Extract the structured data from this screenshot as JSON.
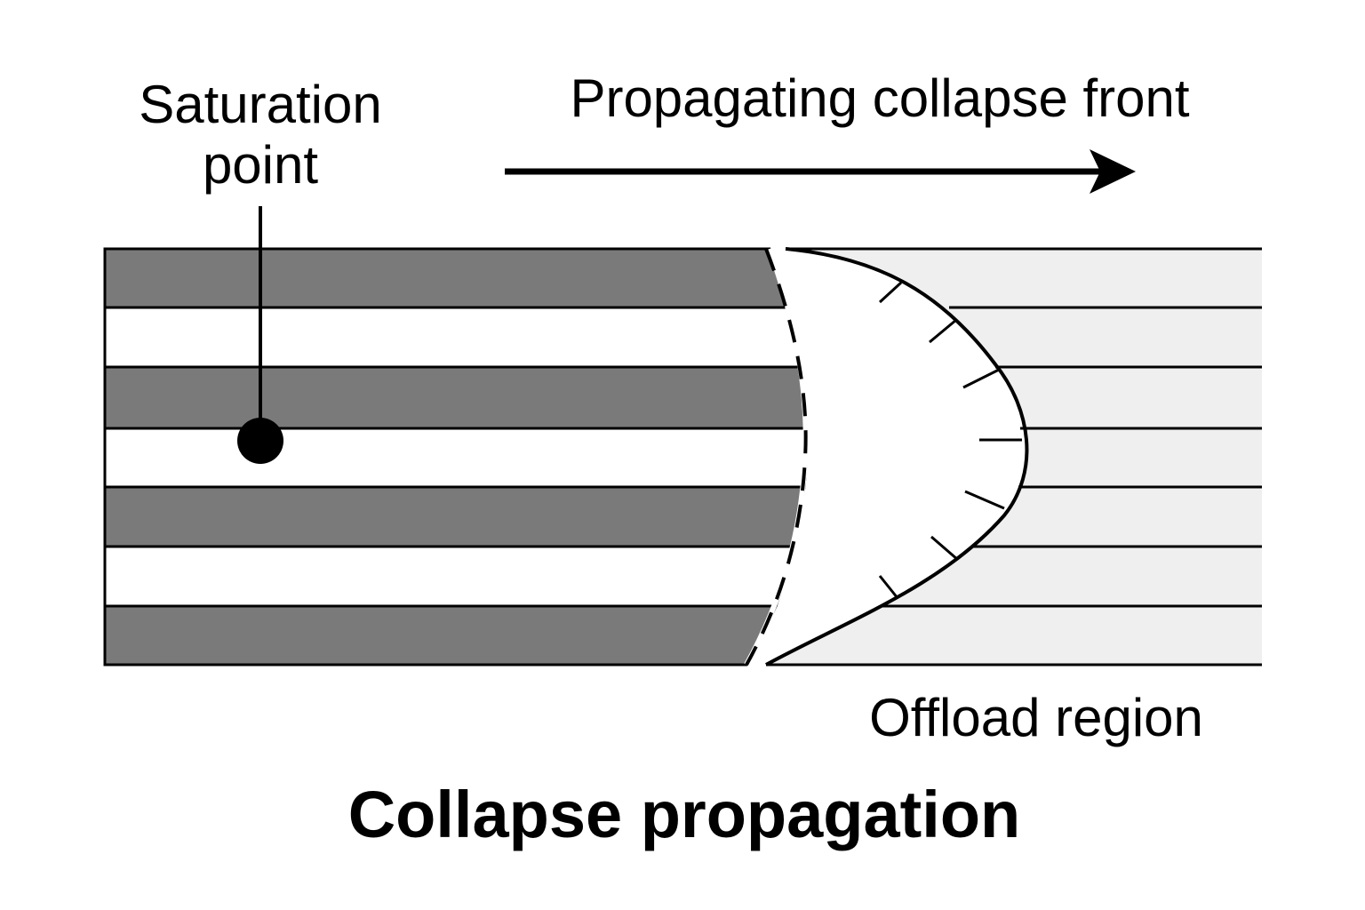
{
  "labels": {
    "saturation_line1": "Saturation",
    "saturation_line2": "point",
    "front": "Propagating collapse front",
    "offload": "Offload region",
    "title": "Collapse propagation"
  },
  "colors": {
    "collapsed_band": "#7a7a7a",
    "open_band": "#ffffff",
    "offload_fill": "#efefef",
    "ink": "#000000"
  }
}
